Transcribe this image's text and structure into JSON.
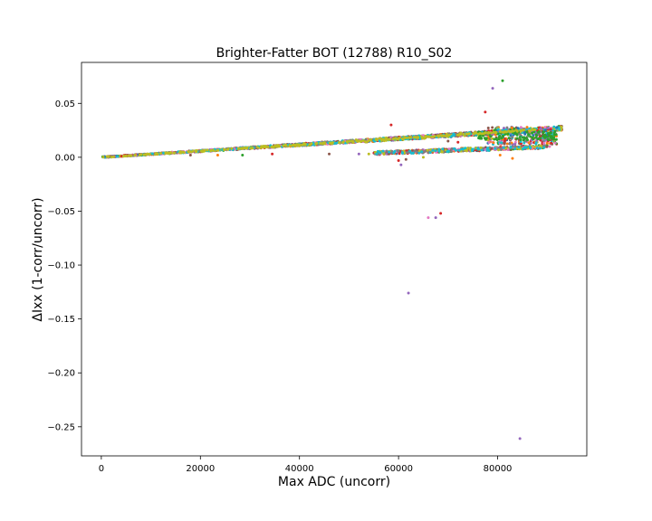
{
  "chart_data": {
    "type": "scatter",
    "title": "Brighter-Fatter BOT (12788) R10_S02",
    "xlabel": "Max ADC (uncorr)",
    "ylabel": "ΔIxx (1-corr/uncorr)",
    "xlim": [
      -4000,
      98000
    ],
    "ylim": [
      -0.277,
      0.088
    ],
    "xticks": [
      0,
      20000,
      40000,
      60000,
      80000
    ],
    "xtick_labels": [
      "0",
      "20000",
      "40000",
      "60000",
      "80000"
    ],
    "yticks": [
      0.05,
      0.0,
      -0.05,
      -0.1,
      -0.15,
      -0.2,
      -0.25
    ],
    "ytick_labels": [
      "0.05",
      "0.00",
      "−0.05",
      "−0.10",
      "−0.15",
      "−0.20",
      "−0.25"
    ],
    "grid": false,
    "legend": "none",
    "series_colors": [
      "#1f77b4",
      "#ff7f0e",
      "#2ca02c",
      "#d62728",
      "#9467bd",
      "#8c564b",
      "#e377c2",
      "#7f7f7f",
      "#bcbd22",
      "#17becf"
    ],
    "trends": [
      {
        "branch": "upper",
        "x_range": [
          0,
          93000
        ],
        "slope_per_adc": 2.9e-07,
        "intercept": 0.0
      },
      {
        "branch": "lower",
        "x_range": [
          55000,
          90000
        ],
        "slope_per_adc": 1.7e-07,
        "intercept": -0.0055
      }
    ],
    "outliers": [
      {
        "x": 81000,
        "y": 0.071,
        "color": "#2ca02c"
      },
      {
        "x": 79000,
        "y": 0.064,
        "color": "#9467bd"
      },
      {
        "x": 77500,
        "y": 0.042,
        "color": "#d62728"
      },
      {
        "x": 58500,
        "y": 0.03,
        "color": "#d62728"
      },
      {
        "x": 66000,
        "y": -0.056,
        "color": "#e377c2"
      },
      {
        "x": 67500,
        "y": -0.056,
        "color": "#9467bd"
      },
      {
        "x": 68500,
        "y": -0.052,
        "color": "#d62728"
      },
      {
        "x": 62000,
        "y": -0.126,
        "color": "#9467bd"
      },
      {
        "x": 84500,
        "y": -0.261,
        "color": "#9467bd"
      },
      {
        "x": 60000,
        "y": -0.003,
        "color": "#d62728"
      },
      {
        "x": 60500,
        "y": -0.007,
        "color": "#9467bd"
      },
      {
        "x": 61500,
        "y": -0.002,
        "color": "#8c564b"
      },
      {
        "x": 65000,
        "y": 0.0,
        "color": "#bcbd22"
      },
      {
        "x": 83000,
        "y": -0.001,
        "color": "#ff7f0e"
      },
      {
        "x": 80500,
        "y": 0.002,
        "color": "#ff7f0e"
      },
      {
        "x": 46000,
        "y": 0.003,
        "color": "#8c564b"
      },
      {
        "x": 34500,
        "y": 0.003,
        "color": "#d62728"
      },
      {
        "x": 28500,
        "y": 0.002,
        "color": "#2ca02c"
      },
      {
        "x": 23500,
        "y": 0.002,
        "color": "#ff7f0e"
      },
      {
        "x": 18000,
        "y": 0.002,
        "color": "#8c564b"
      },
      {
        "x": 52000,
        "y": 0.003,
        "color": "#9467bd"
      },
      {
        "x": 54000,
        "y": 0.003,
        "color": "#bcbd22"
      },
      {
        "x": 70000,
        "y": 0.015,
        "color": "#8c564b"
      },
      {
        "x": 72000,
        "y": 0.014,
        "color": "#d62728"
      },
      {
        "x": 90500,
        "y": 0.01,
        "color": "#e377c2"
      }
    ]
  }
}
